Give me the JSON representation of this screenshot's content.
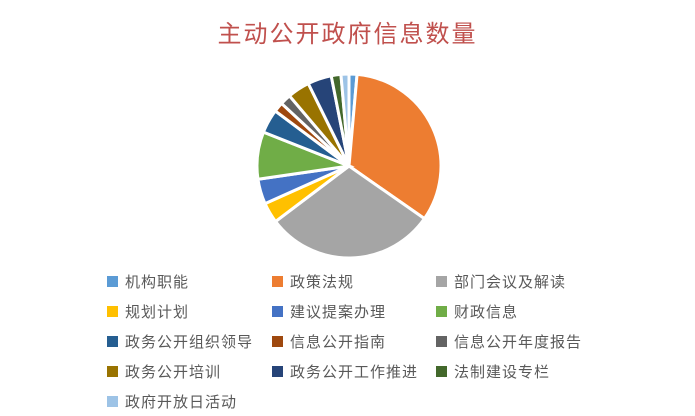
{
  "title": "主动公开政府信息数量",
  "colors": {
    "background": "#FFFFFF",
    "title_text": "#C0504D",
    "legend_text": "#595959",
    "slice_separator": "#FFFFFF"
  },
  "chart_data": {
    "type": "pie",
    "title": "主动公开政府信息数量",
    "legend_position": "bottom",
    "legend_columns": 3,
    "start_angle_deg": 0,
    "direction": "clockwise",
    "slices": [
      {
        "label": "机构职能",
        "value": 1.4,
        "color": "#5B9BD5"
      },
      {
        "label": "政策法规",
        "value": 33.3,
        "color": "#ED7D31"
      },
      {
        "label": "部门会议及解读",
        "value": 30.0,
        "color": "#A5A5A5"
      },
      {
        "label": "规划计划",
        "value": 3.6,
        "color": "#FFC000"
      },
      {
        "label": "建议提案办理",
        "value": 4.4,
        "color": "#4472C4"
      },
      {
        "label": "财政信息",
        "value": 8.3,
        "color": "#70AD47"
      },
      {
        "label": "政务公开组织领导",
        "value": 4.2,
        "color": "#255E91"
      },
      {
        "label": "信息公开指南",
        "value": 1.7,
        "color": "#9E480E"
      },
      {
        "label": "信息公开年度报告",
        "value": 1.9,
        "color": "#636363"
      },
      {
        "label": "政务公开培训",
        "value": 3.9,
        "color": "#997300"
      },
      {
        "label": "政务公开工作推进",
        "value": 4.2,
        "color": "#264478"
      },
      {
        "label": "法制建设专栏",
        "value": 1.7,
        "color": "#43682B"
      },
      {
        "label": "政府开放日活动",
        "value": 1.4,
        "color": "#9DC3E6"
      }
    ]
  }
}
